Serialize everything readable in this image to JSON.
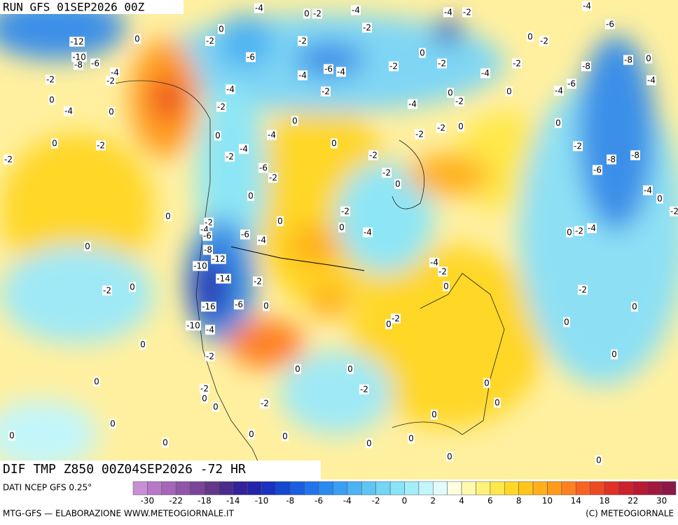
{
  "header": {
    "run": "RUN GFS 01SEP2026 00Z",
    "field": "DIF TMP Z850 00Z04SEP2026 -72 HR"
  },
  "map": {
    "contour_labels": [
      "-4",
      "0",
      "-2",
      "-4",
      "-4",
      "-2",
      "-4",
      "-6",
      "-12",
      "-10",
      "-8",
      "-6",
      "-4",
      "-2",
      "-2",
      "0",
      "-4",
      "0",
      "0",
      "-2",
      "-2",
      "0",
      "0",
      "-2",
      "-6",
      "-2",
      "-2",
      "0",
      "-2",
      "-6",
      "-4",
      "-4",
      "-2",
      "-4",
      "-2",
      "-8",
      "-8",
      "0",
      "-4",
      "-6",
      "-4",
      "0",
      "-2",
      "-8",
      "-8",
      "-6",
      "-4",
      "0",
      "-2",
      "-4",
      "-4",
      "-2",
      "-6",
      "-2",
      "0",
      "0",
      "0",
      "0",
      "-2",
      "-4",
      "-6",
      "-6",
      "-4",
      "-8",
      "-12",
      "-10",
      "-14",
      "-2",
      "-16",
      "-6",
      "0",
      "-10",
      "-4",
      "-2",
      "0",
      "0",
      "-2",
      "0",
      "0",
      "-2",
      "0",
      "0",
      "-2",
      "0",
      "0",
      "0",
      "-2",
      "0",
      "0",
      "0",
      "0",
      "0",
      "-4",
      "-2",
      "-2",
      "-2",
      "0",
      "0",
      "-2",
      "-2",
      "0",
      "-4",
      "-2",
      "0",
      "-4",
      "0",
      "-2",
      "0",
      "-2",
      "-2",
      "0",
      "-4",
      "-2",
      "0",
      "-2",
      "0",
      "0",
      "0",
      "0",
      "0",
      "-2",
      "0",
      "0",
      "0",
      "0",
      "0",
      "0",
      "0",
      "-2",
      "-4"
    ]
  },
  "colorbar": {
    "colors": [
      "#c88fd6",
      "#b878c8",
      "#a466b8",
      "#8f55a8",
      "#7a4598",
      "#64378a",
      "#4b2c8c",
      "#35229a",
      "#2424aa",
      "#1a32c0",
      "#1448d0",
      "#1a5ee0",
      "#2274ec",
      "#2b8af0",
      "#3a9ff2",
      "#4db3f2",
      "#5fc5f2",
      "#72d6f4",
      "#88e4f6",
      "#a3eef8",
      "#c3f6fb",
      "#e2fbfd",
      "#fffde0",
      "#fff9b0",
      "#fff27a",
      "#ffe84a",
      "#ffd726",
      "#ffc51a",
      "#ffb01a",
      "#ff9a1a",
      "#ff8020",
      "#f76422",
      "#ec4a22",
      "#de3226",
      "#cc222c",
      "#b81a34",
      "#a2183e",
      "#8c1848"
    ],
    "ticks": [
      "-30",
      "-22",
      "-18",
      "-14",
      "-10",
      "-8",
      "-6",
      "-4",
      "-2",
      "0",
      "2",
      "4",
      "6",
      "8",
      "10",
      "14",
      "18",
      "22",
      "30"
    ]
  },
  "footer": {
    "source": "DATI NCEP GFS 0.25°",
    "credit": "MTG-GFS — ELABORAZIONE WWW.METEOGIORNALE.IT",
    "copyright": "(C) METEOGIORNALE"
  }
}
